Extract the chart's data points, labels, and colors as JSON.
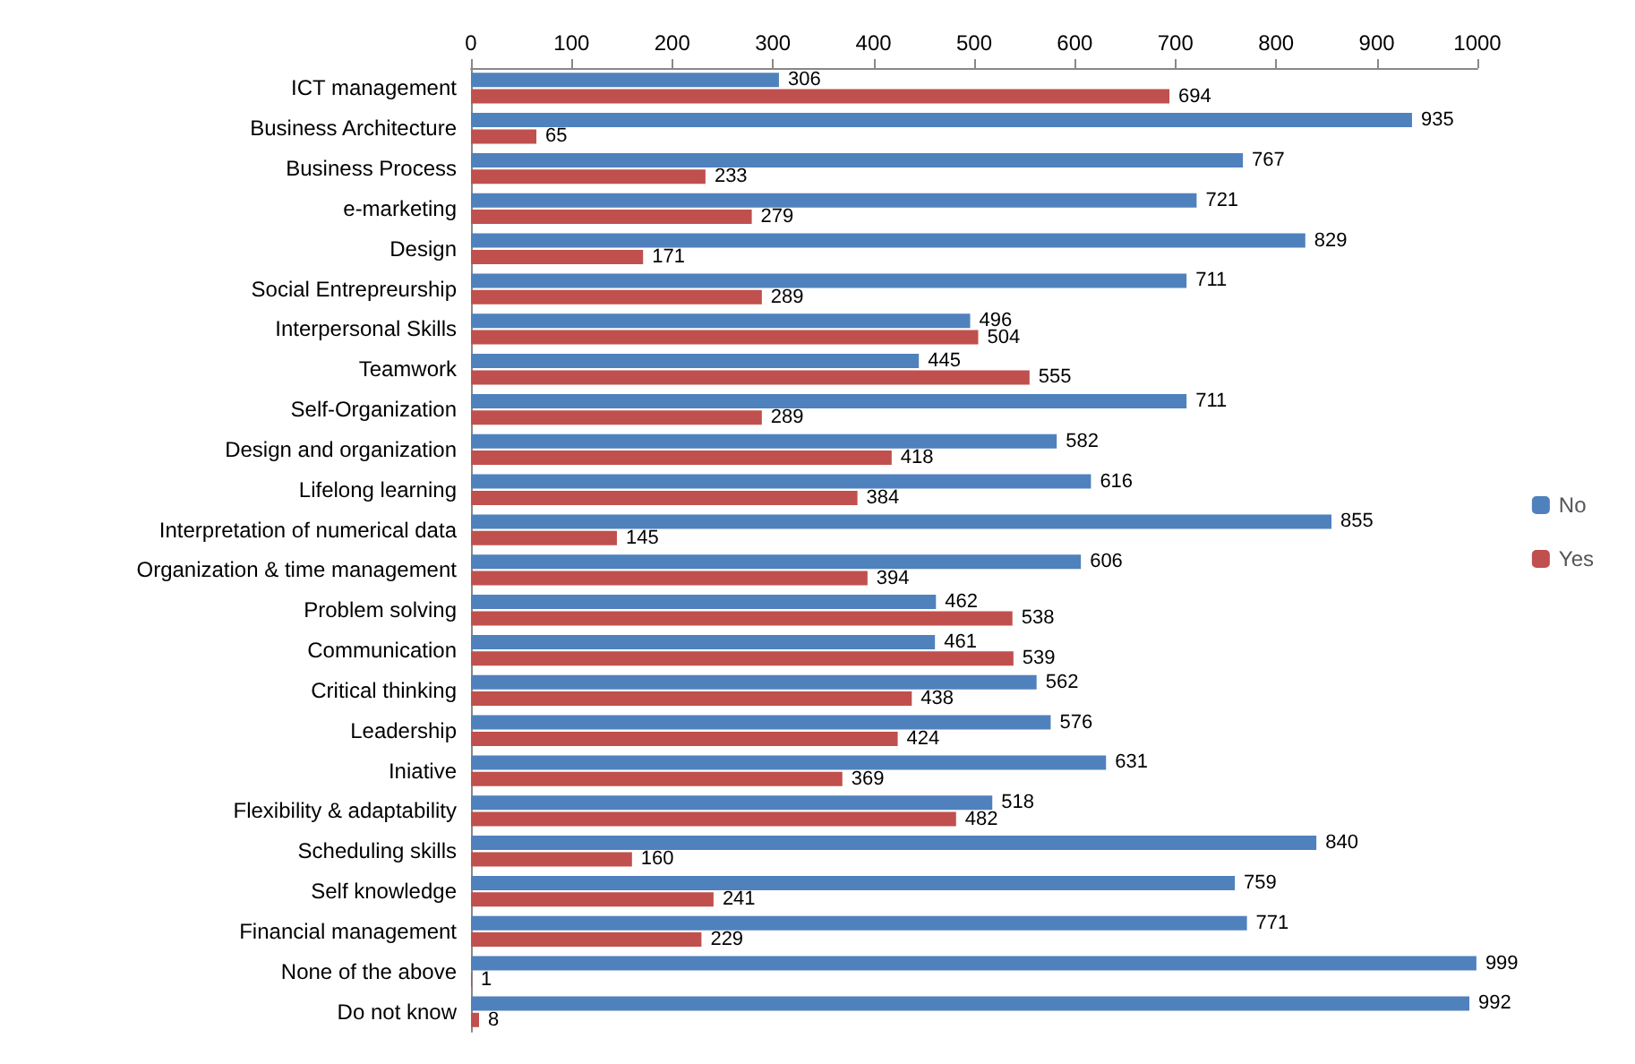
{
  "chart_data": {
    "type": "bar",
    "orientation": "horizontal",
    "categories": [
      "ICT management",
      "Business Architecture",
      "Business Process",
      "e-marketing",
      "Design",
      "Social Entrepreurship",
      "Interpersonal Skills",
      "Teamwork",
      "Self-Organization",
      "Design and organization",
      "Lifelong learning",
      "Interpretation of numerical data",
      "Organization & time management",
      "Problem solving",
      "Communication",
      "Critical thinking",
      "Leadership",
      "Iniative",
      "Flexibility & adaptability",
      "Scheduling skills",
      "Self knowledge",
      "Financial management",
      "None of the above",
      "Do not know"
    ],
    "series": [
      {
        "name": "No",
        "color": "#4f81bd",
        "values": [
          306,
          935,
          767,
          721,
          829,
          711,
          496,
          445,
          711,
          582,
          616,
          855,
          606,
          462,
          461,
          562,
          576,
          631,
          518,
          840,
          759,
          771,
          999,
          992
        ]
      },
      {
        "name": "Yes",
        "color": "#c0504d",
        "values": [
          694,
          65,
          233,
          279,
          171,
          289,
          504,
          555,
          289,
          418,
          384,
          145,
          394,
          538,
          539,
          438,
          424,
          369,
          482,
          160,
          241,
          229,
          1,
          8
        ]
      }
    ],
    "xlim": [
      0,
      1000
    ],
    "xticks": [
      0,
      100,
      200,
      300,
      400,
      500,
      600,
      700,
      800,
      900,
      1000
    ],
    "data_labels": true,
    "grid": false,
    "legend": "right"
  }
}
